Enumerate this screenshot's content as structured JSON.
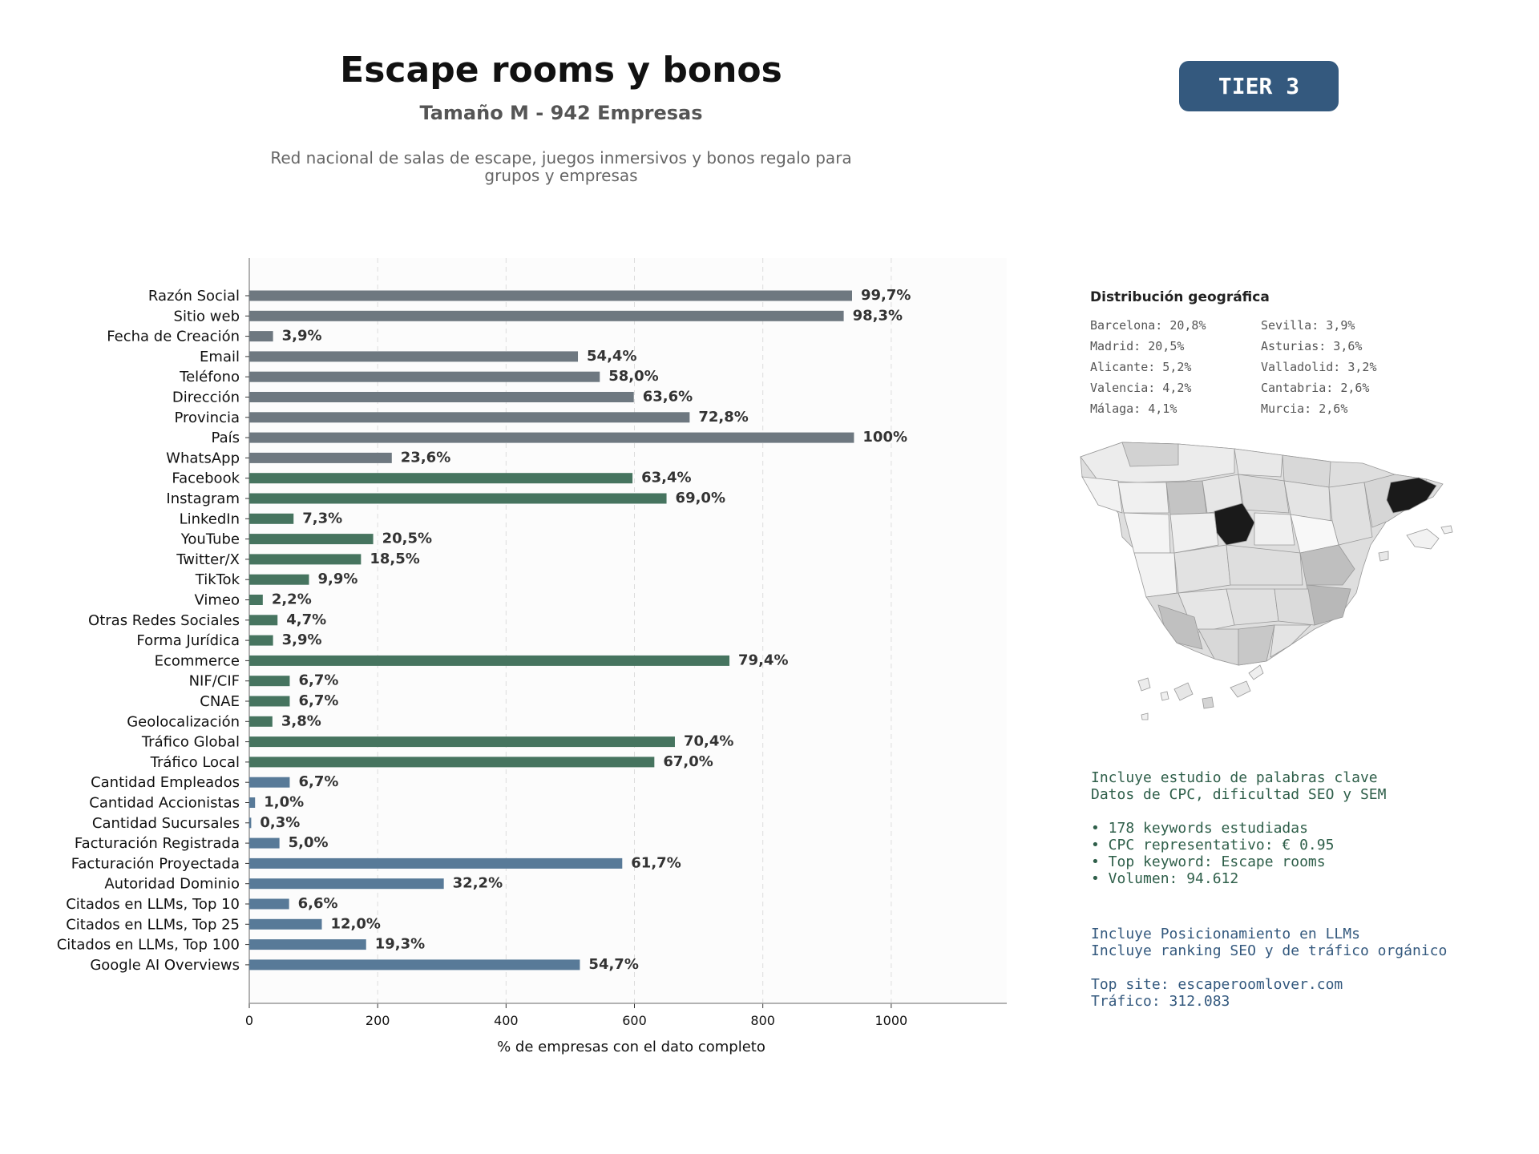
{
  "header": {
    "title": "Escape rooms y bonos",
    "subtitle": "Tamaño M - 942 Empresas",
    "description_line1": "Red nacional de salas de escape, juegos inmersivos y bonos regalo para",
    "description_line2": "grupos y empresas",
    "tier": "TIER 3"
  },
  "chart_data": {
    "type": "bar",
    "orientation": "horizontal",
    "xlabel": "% de empresas con el dato completo",
    "ylabel": "",
    "xlim": [
      0,
      1180
    ],
    "xticks": [
      0,
      200,
      400,
      600,
      800,
      1000
    ],
    "grid": "vertical dashed",
    "categories": [
      "Razón Social",
      "Sitio web",
      "Fecha de Creación",
      "Email",
      "Teléfono",
      "Dirección",
      "Provincia",
      "País",
      "WhatsApp",
      "Facebook",
      "Instagram",
      "LinkedIn",
      "YouTube",
      "Twitter/X",
      "TikTok",
      "Vimeo",
      "Otras Redes Sociales",
      "Forma Jurídica",
      "Ecommerce",
      "NIF/CIF",
      "CNAE",
      "Geolocalización",
      "Tráfico Global",
      "Tráfico Local",
      "Cantidad Empleados",
      "Cantidad Accionistas",
      "Cantidad Sucursales",
      "Facturación Registrada",
      "Facturación Proyectada",
      "Autoridad Dominio",
      "Citados en LLMs, Top 10",
      "Citados en LLMs, Top 25",
      "Citados en LLMs, Top 100",
      "Google AI Overviews"
    ],
    "values": [
      939,
      926,
      37,
      512,
      546,
      599,
      686,
      942,
      222,
      597,
      650,
      69,
      193,
      174,
      93,
      21,
      44,
      37,
      748,
      63,
      63,
      36,
      663,
      631,
      63,
      9,
      3,
      47,
      581,
      303,
      62,
      113,
      182,
      515
    ],
    "labels": [
      "99,7%",
      "98,3%",
      "3,9%",
      "54,4%",
      "58,0%",
      "63,6%",
      "72,8%",
      "100%",
      "23,6%",
      "63,4%",
      "69,0%",
      "7,3%",
      "20,5%",
      "18,5%",
      "9,9%",
      "2,2%",
      "4,7%",
      "3,9%",
      "79,4%",
      "6,7%",
      "6,7%",
      "3,8%",
      "70,4%",
      "67,0%",
      "6,7%",
      "1,0%",
      "0,3%",
      "5,0%",
      "61,7%",
      "32,2%",
      "6,6%",
      "12,0%",
      "19,3%",
      "54,7%"
    ],
    "groups": [
      "gray",
      "gray",
      "gray",
      "gray",
      "gray",
      "gray",
      "gray",
      "gray",
      "gray",
      "green",
      "green",
      "green",
      "green",
      "green",
      "green",
      "green",
      "green",
      "green",
      "green",
      "green",
      "green",
      "green",
      "green",
      "green",
      "blue",
      "blue",
      "blue",
      "blue",
      "blue",
      "blue",
      "blue",
      "blue",
      "blue",
      "blue"
    ],
    "colors": {
      "gray": "#6e7880",
      "green": "#46745f",
      "blue": "#587a98"
    }
  },
  "geo": {
    "title": "Distribución geográfica",
    "items": [
      "Barcelona: 20,8%",
      "Sevilla: 3,9%",
      "Madrid: 20,5%",
      "Asturias: 3,6%",
      "Alicante: 5,2%",
      "Valladolid: 3,2%",
      "Valencia: 4,2%",
      "Cantabria: 2,6%",
      "Málaga: 4,1%",
      "Murcia: 2,6%"
    ]
  },
  "seo": {
    "line1": "Incluye estudio de palabras clave",
    "line2": "Datos de CPC, dificultad SEO y SEM",
    "bullet1": "• 178 keywords estudiadas",
    "bullet2": "• CPC representativo: € 0.95",
    "bullet3": "• Top keyword: Escape rooms",
    "bullet4": "• Volumen: 94.612"
  },
  "llm": {
    "line1": "Incluye Posicionamiento en LLMs",
    "line2": "Incluye ranking SEO y de tráfico orgánico",
    "top_site": "Top site: escaperoomlover.com",
    "traffic": "Tráfico: 312.083"
  }
}
